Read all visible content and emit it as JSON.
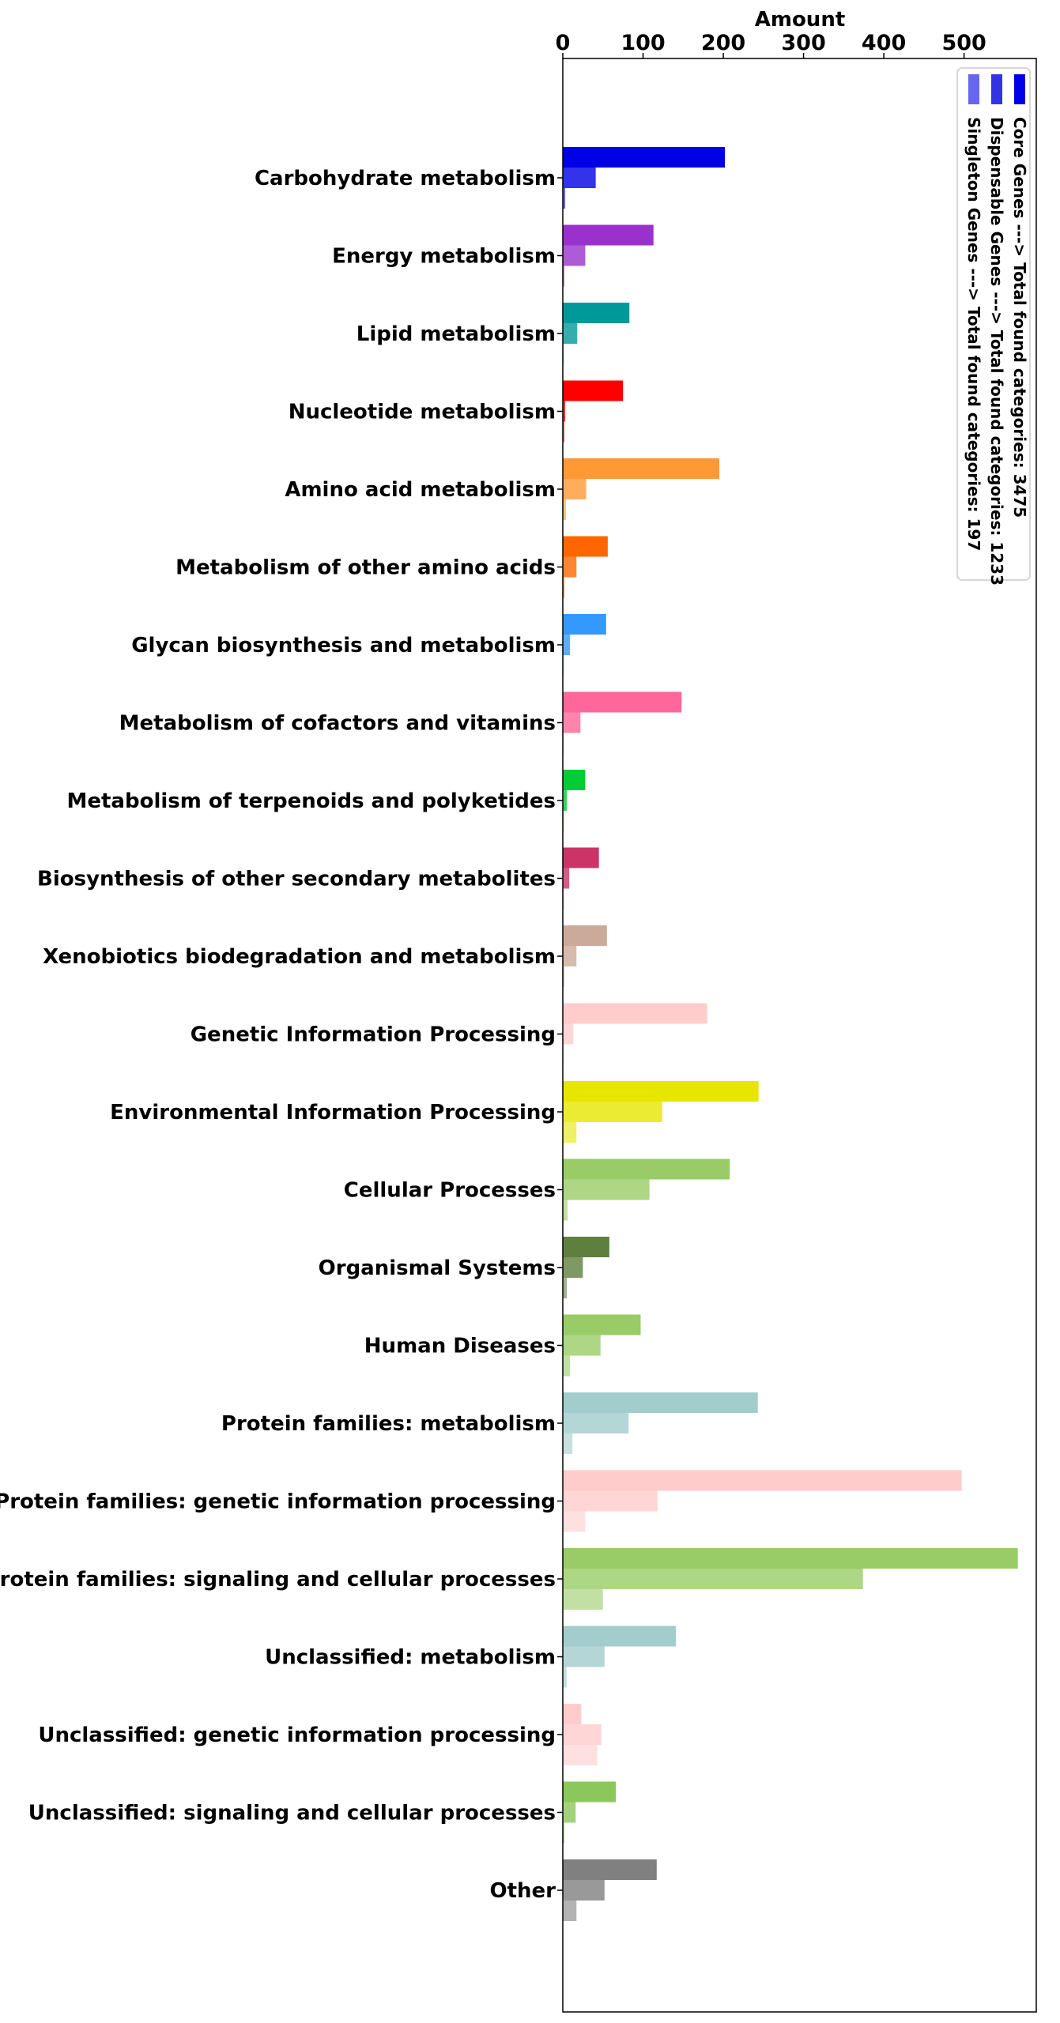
{
  "chart_data": {
    "type": "bar",
    "orientation": "horizontal",
    "xlabel": "Amount",
    "xlabel_position": "top",
    "xlim": [
      0,
      590
    ],
    "xticks": [
      0,
      100,
      200,
      300,
      400,
      500
    ],
    "grid": false,
    "legend_placement": "top-right",
    "legend_rotated": true,
    "categories": [
      "Carbohydrate metabolism",
      "Energy metabolism",
      "Lipid metabolism",
      "Nucleotide metabolism",
      "Amino acid metabolism",
      "Metabolism of other amino acids",
      "Glycan biosynthesis and metabolism",
      "Metabolism of cofactors and vitamins",
      "Metabolism of terpenoids and polyketides",
      "Biosynthesis of other secondary metabolites",
      "Xenobiotics biodegradation and metabolism",
      "Genetic Information Processing",
      "Environmental Information Processing",
      "Cellular Processes",
      "Organismal Systems",
      "Human Diseases",
      "Protein families: metabolism",
      "Protein families: genetic information processing",
      "Protein families: signaling and cellular processes",
      "Unclassified: metabolism",
      "Unclassified: genetic information processing",
      "Unclassified: signaling and cellular processes",
      "Other"
    ],
    "category_colors": [
      "#0000e6",
      "#9932cc",
      "#009999",
      "#ff0000",
      "#ff9933",
      "#ff6600",
      "#3399ff",
      "#ff6699",
      "#00cc33",
      "#cc3366",
      "#ccaa99",
      "#ffcccc",
      "#e6e600",
      "#99cc66",
      "#5f7f3f",
      "#99cc66",
      "#a3cccc",
      "#ffcccc",
      "#99cc66",
      "#a3cccc",
      "#ffcccc",
      "#8bc75a",
      "#808080"
    ],
    "series": [
      {
        "name": "Core Genes ---> Total found categories: 3475",
        "opacity": 1.0,
        "values": [
          202,
          113,
          83,
          75,
          195,
          56,
          54,
          148,
          28,
          45,
          55,
          180,
          244,
          208,
          58,
          97,
          243,
          497,
          567,
          141,
          23,
          66,
          117
        ]
      },
      {
        "name": "Dispensable Genes ---> Total found categories: 1233",
        "opacity": 0.8,
        "values": [
          41,
          28,
          18,
          3,
          29,
          17,
          9,
          22,
          5,
          8,
          17,
          13,
          124,
          108,
          25,
          47,
          82,
          118,
          374,
          52,
          48,
          16,
          52
        ]
      },
      {
        "name": "Singleton Genes ---> Total found categories: 197",
        "opacity": 0.6,
        "values": [
          3,
          2,
          1,
          2,
          4,
          2,
          1,
          1,
          1,
          1,
          2,
          1,
          17,
          6,
          5,
          9,
          12,
          28,
          50,
          5,
          43,
          2,
          17
        ]
      }
    ],
    "legend_colors": [
      "#0000e6",
      "#3333e6",
      "#6666ee"
    ]
  }
}
